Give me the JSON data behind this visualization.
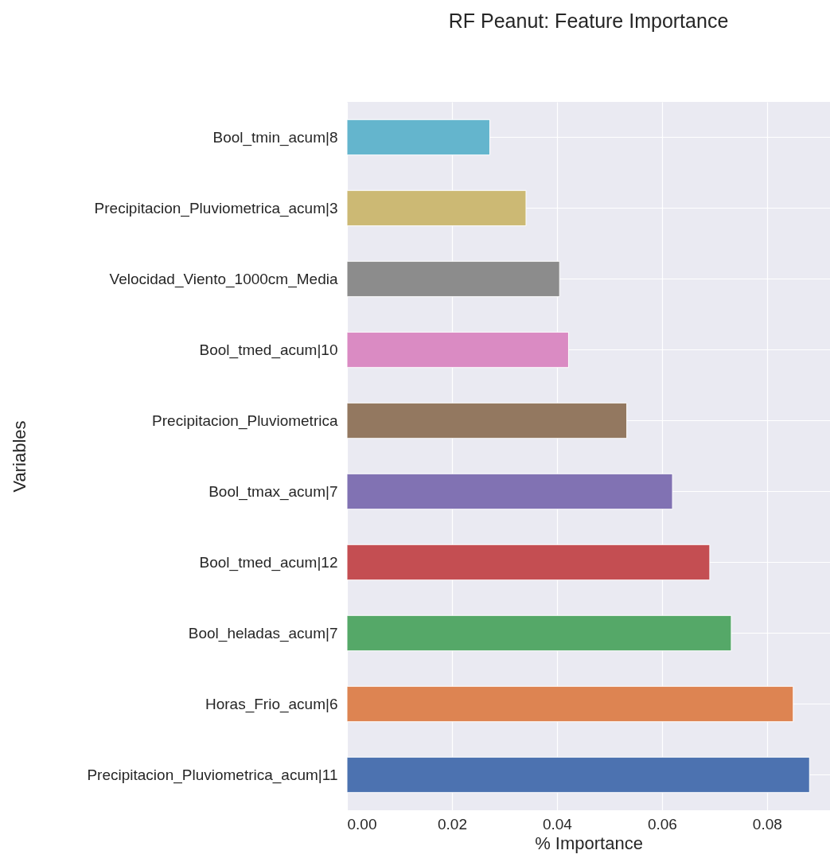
{
  "chart_data": {
    "type": "bar",
    "orientation": "horizontal",
    "title": "RF Peanut: Feature Importance",
    "xlabel": "% Importance",
    "ylabel": "Variables",
    "categories": [
      "Bool_tmin_acum|8",
      "Precipitacion_Pluviometrica_acum|3",
      "Velocidad_Viento_1000cm_Media",
      "Bool_tmed_acum|10",
      "Precipitacion_Pluviometrica",
      "Bool_tmax_acum|7",
      "Bool_tmed_acum|12",
      "Bool_heladas_acum|7",
      "Horas_Frio_acum|6",
      "Precipitacion_Pluviometrica_acum|11"
    ],
    "values": [
      0.0272,
      0.0341,
      0.0405,
      0.0422,
      0.0533,
      0.062,
      0.0691,
      0.0732,
      0.085,
      0.0881
    ],
    "colors": [
      "#64b5cd",
      "#ccb974",
      "#8c8c8c",
      "#da8bc3",
      "#937860",
      "#8172b3",
      "#c44e52",
      "#55a868",
      "#dd8452",
      "#4c72b0"
    ],
    "xlim": [
      0,
      0.092
    ],
    "xticks": [
      {
        "value": 0,
        "label": "0.00"
      },
      {
        "value": 0.02,
        "label": "0.02"
      },
      {
        "value": 0.04,
        "label": "0.04"
      },
      {
        "value": 0.06,
        "label": "0.06"
      },
      {
        "value": 0.08,
        "label": "0.08"
      }
    ],
    "grid": true,
    "legend": false
  }
}
